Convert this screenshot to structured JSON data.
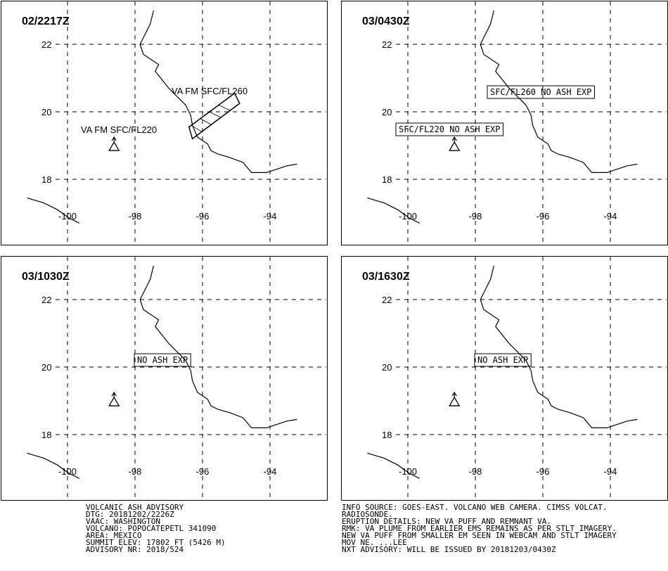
{
  "panels": [
    {
      "time": "02/2217Z",
      "annotations": [
        {
          "text": "VA FM SFC/FL260",
          "style": "plain"
        },
        {
          "text": "VA FM SFC/FL220",
          "style": "plain"
        }
      ],
      "ash_polygon": [
        [
          -96.3,
          19.2
        ],
        [
          -94.9,
          20.25
        ],
        [
          -95.05,
          20.55
        ],
        [
          -96.4,
          19.55
        ]
      ]
    },
    {
      "time": "03/0430Z",
      "annotations": [
        {
          "text": "SFC/FL260 NO ASH EXP",
          "style": "boxed"
        },
        {
          "text": "SFC/FL220 NO ASH EXP",
          "style": "boxed"
        }
      ]
    },
    {
      "time": "03/1030Z",
      "annotations": [
        {
          "text": "NO ASH EXP",
          "style": "boxed"
        }
      ]
    },
    {
      "time": "03/1630Z",
      "annotations": [
        {
          "text": "NO ASH EXP",
          "style": "boxed"
        }
      ]
    }
  ],
  "map": {
    "lon_labels": [
      "-100",
      "-98",
      "-96",
      "-94"
    ],
    "lat_labels": [
      "22",
      "20",
      "18"
    ],
    "lon_range": [
      -100,
      -94
    ],
    "lat_range": [
      18,
      22
    ],
    "gridlines": "dashed",
    "volcano": {
      "lon": -98.62,
      "lat": 19.02,
      "icon": "volcano-icon"
    },
    "coastline_pacific": [
      [
        -101.2,
        17.45
      ],
      [
        -100.7,
        17.3
      ],
      [
        -100.3,
        17.1
      ],
      [
        -99.95,
        16.85
      ],
      [
        -99.65,
        16.7
      ]
    ],
    "coastline_gulf": [
      [
        -97.45,
        23.0
      ],
      [
        -97.55,
        22.6
      ],
      [
        -97.7,
        22.3
      ],
      [
        -97.85,
        22.0
      ],
      [
        -97.75,
        21.7
      ],
      [
        -97.3,
        21.4
      ],
      [
        -97.4,
        21.2
      ],
      [
        -97.2,
        20.95
      ],
      [
        -97.0,
        20.7
      ],
      [
        -96.75,
        20.45
      ],
      [
        -96.5,
        20.2
      ],
      [
        -96.35,
        19.9
      ],
      [
        -96.3,
        19.6
      ],
      [
        -96.15,
        19.25
      ],
      [
        -95.85,
        19.05
      ],
      [
        -95.75,
        18.85
      ],
      [
        -95.55,
        18.75
      ],
      [
        -95.2,
        18.65
      ],
      [
        -94.8,
        18.5
      ],
      [
        -94.55,
        18.2
      ],
      [
        -94.1,
        18.2
      ],
      [
        -93.8,
        18.3
      ],
      [
        -93.5,
        18.4
      ],
      [
        -93.2,
        18.45
      ]
    ]
  },
  "advisory": {
    "left": [
      "VOLCANIC ASH ADVISORY",
      "DTG: 20181202/2226Z",
      "VAAC: WASHINGTON",
      "VOLCANO: POPOCATEPETL 341090",
      "AREA: MEXICO",
      "SUMMIT ELEV: 17802 FT (5426 M)",
      "ADVISORY NR: 2018/524"
    ],
    "right": [
      "INFO SOURCE: GOES-EAST. VOLCANO WEB CAMERA. CIMSS VOLCAT.",
      "RADIOSONDE.",
      "ERUPTION DETAILS: NEW VA PUFF AND REMNANT VA.",
      "RMK: VA PLUME FROM EARLIER EMS REMAINS AS PER STLT IMAGERY.",
      "NEW VA PUFF FROM SMALLER EM SEEN IN WEBCAM AND STLT IMAGERY",
      "MOV NE. ...LEE",
      "NXT ADVISORY: WILL BE ISSUED BY 20181203/0430Z"
    ]
  }
}
